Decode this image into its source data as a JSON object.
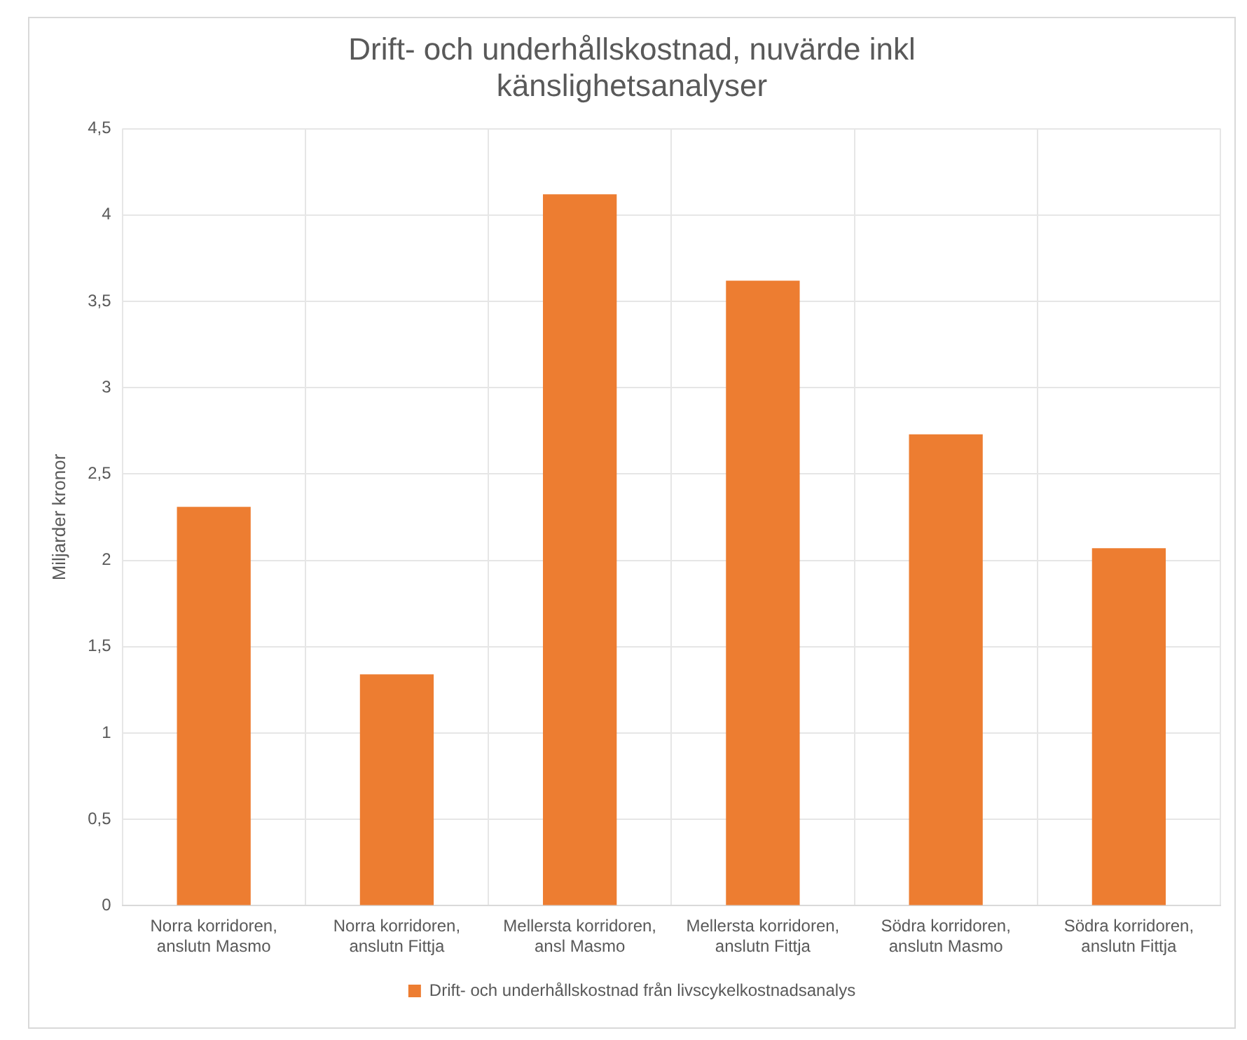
{
  "chart_data": {
    "type": "bar",
    "title": "Drift- och underhållskostnad, nuvärde inkl känslighetsanalyser",
    "ylabel": "Miljarder kronor",
    "categories": [
      "Norra korridoren, anslutn Masmo",
      "Norra korridoren, anslutn Fittja",
      "Mellersta korridoren, ansl Masmo",
      "Mellersta korridoren, anslutn Fittja",
      "Södra korridoren, anslutn Masmo",
      "Södra korridoren, anslutn Fittja"
    ],
    "series": [
      {
        "name": "Drift- och underhållskostnad från livscykelkostnadsanalys",
        "color": "#ed7d31",
        "values": [
          2.31,
          1.34,
          4.12,
          3.62,
          2.73,
          2.07
        ]
      }
    ],
    "ylim": [
      0,
      4.5
    ],
    "yticks": [
      0,
      {
        "value": 0.5,
        "label": "0,5"
      },
      1,
      {
        "value": 1.5,
        "label": "1,5"
      },
      2,
      {
        "value": 2.5,
        "label": "2,5"
      },
      3,
      {
        "value": 3.5,
        "label": "3,5"
      },
      4,
      {
        "value": 4.5,
        "label": "4,5"
      }
    ],
    "grid": true,
    "legend": "bottom"
  }
}
